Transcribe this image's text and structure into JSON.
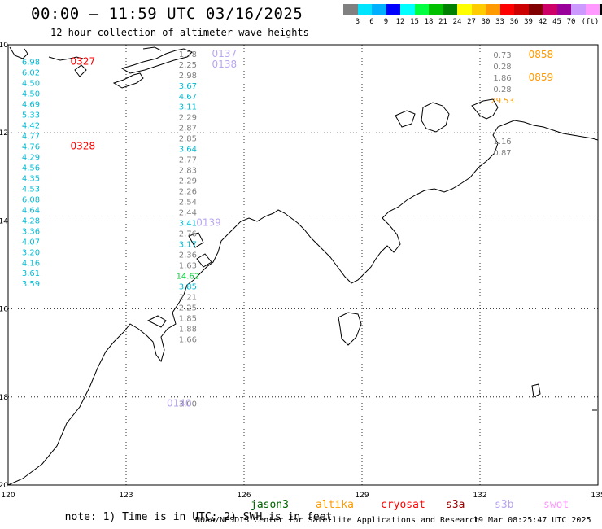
{
  "title": "00:00 – 11:59 UTC 03/16/2025",
  "subtitle": "12 hour collection of altimeter wave heights",
  "colorbar": {
    "colors": [
      "#808080",
      "#00e5ff",
      "#00b0ff",
      "#0000ff",
      "#00ffff",
      "#00ff40",
      "#00c000",
      "#008000",
      "#ffff00",
      "#ffcc00",
      "#ff9900",
      "#ff0000",
      "#cc0000",
      "#800000",
      "#cc0066",
      "#990099",
      "#cc99ff",
      "#ff99ff",
      "#000000"
    ],
    "ticks": [
      "3",
      "6",
      "9",
      "12",
      "15",
      "18",
      "21",
      "24",
      "27",
      "30",
      "33",
      "36",
      "39",
      "42",
      "45",
      "70",
      "(ft)"
    ]
  },
  "axes": {
    "lon_ticks": [
      "120",
      "123",
      "126",
      "129",
      "132",
      "135"
    ],
    "lat_ticks": [
      "-10",
      "-12",
      "-14",
      "-16",
      "-18",
      "-20"
    ]
  },
  "swh": {
    "track1": {
      "color": "#00bcd4",
      "labels": [
        {
          "lat": -10.38,
          "lon": 120.58,
          "text": "6.98"
        },
        {
          "lat": -10.62,
          "lon": 120.58,
          "text": "6.02"
        },
        {
          "lat": -10.86,
          "lon": 120.58,
          "text": "4.50"
        },
        {
          "lat": -11.1,
          "lon": 120.58,
          "text": "4.50"
        },
        {
          "lat": -11.34,
          "lon": 120.58,
          "text": "4.69"
        },
        {
          "lat": -11.58,
          "lon": 120.58,
          "text": "5.33"
        },
        {
          "lat": -11.82,
          "lon": 120.58,
          "text": "4.42"
        },
        {
          "lat": -12.06,
          "lon": 120.58,
          "text": "4.77"
        },
        {
          "lat": -12.3,
          "lon": 120.58,
          "text": "4.76"
        },
        {
          "lat": -12.54,
          "lon": 120.58,
          "text": "4.29"
        },
        {
          "lat": -12.78,
          "lon": 120.58,
          "text": "4.56"
        },
        {
          "lat": -13.02,
          "lon": 120.58,
          "text": "4.35"
        },
        {
          "lat": -13.26,
          "lon": 120.58,
          "text": "4.53"
        },
        {
          "lat": -13.5,
          "lon": 120.58,
          "text": "6.08"
        },
        {
          "lat": -13.74,
          "lon": 120.58,
          "text": "4.64"
        },
        {
          "lat": -13.98,
          "lon": 120.58,
          "text": "4.28"
        },
        {
          "lat": -14.22,
          "lon": 120.58,
          "text": "3.36"
        },
        {
          "lat": -14.46,
          "lon": 120.58,
          "text": "4.07"
        },
        {
          "lat": -14.7,
          "lon": 120.58,
          "text": "3.20"
        },
        {
          "lat": -14.94,
          "lon": 120.58,
          "text": "4.16"
        },
        {
          "lat": -15.18,
          "lon": 120.58,
          "text": "3.61"
        },
        {
          "lat": -15.42,
          "lon": 120.58,
          "text": "3.59"
        }
      ]
    },
    "track2": {
      "labels": [
        {
          "lat": -10.2,
          "lon": 124.57,
          "text": "1.78",
          "color": "#808080"
        },
        {
          "lat": -10.44,
          "lon": 124.57,
          "text": "2.25",
          "color": "#808080"
        },
        {
          "lat": -10.68,
          "lon": 124.57,
          "text": "2.98",
          "color": "#808080"
        },
        {
          "lat": -10.92,
          "lon": 124.57,
          "text": "3.67",
          "color": "#00bcd4"
        },
        {
          "lat": -11.16,
          "lon": 124.57,
          "text": "4.67",
          "color": "#00bcd4"
        },
        {
          "lat": -11.4,
          "lon": 124.57,
          "text": "3.11",
          "color": "#00bcd4"
        },
        {
          "lat": -11.64,
          "lon": 124.57,
          "text": "2.29",
          "color": "#808080"
        },
        {
          "lat": -11.88,
          "lon": 124.57,
          "text": "2.87",
          "color": "#808080"
        },
        {
          "lat": -12.12,
          "lon": 124.57,
          "text": "2.85",
          "color": "#808080"
        },
        {
          "lat": -12.36,
          "lon": 124.57,
          "text": "3.64",
          "color": "#00bcd4"
        },
        {
          "lat": -12.6,
          "lon": 124.57,
          "text": "2.77",
          "color": "#808080"
        },
        {
          "lat": -12.84,
          "lon": 124.57,
          "text": "2.83",
          "color": "#808080"
        },
        {
          "lat": -13.08,
          "lon": 124.57,
          "text": "2.29",
          "color": "#808080"
        },
        {
          "lat": -13.32,
          "lon": 124.57,
          "text": "2.26",
          "color": "#808080"
        },
        {
          "lat": -13.56,
          "lon": 124.57,
          "text": "2.54",
          "color": "#808080"
        },
        {
          "lat": -13.8,
          "lon": 124.57,
          "text": "2.44",
          "color": "#808080"
        },
        {
          "lat": -14.04,
          "lon": 124.57,
          "text": "3.41",
          "color": "#00bcd4"
        },
        {
          "lat": -14.28,
          "lon": 124.57,
          "text": "2.76",
          "color": "#808080"
        },
        {
          "lat": -14.52,
          "lon": 124.57,
          "text": "3.17",
          "color": "#00bcd4"
        },
        {
          "lat": -14.76,
          "lon": 124.57,
          "text": "2.36",
          "color": "#808080"
        },
        {
          "lat": -15.0,
          "lon": 124.57,
          "text": "1.63",
          "color": "#808080"
        },
        {
          "lat": -15.24,
          "lon": 124.57,
          "text": "14.62",
          "color": "#00cc33"
        },
        {
          "lat": -15.48,
          "lon": 124.57,
          "text": "3.85",
          "color": "#00bcd4"
        },
        {
          "lat": -15.72,
          "lon": 124.57,
          "text": "2.21",
          "color": "#808080"
        },
        {
          "lat": -15.96,
          "lon": 124.57,
          "text": "2.25",
          "color": "#808080"
        },
        {
          "lat": -16.2,
          "lon": 124.57,
          "text": "1.85",
          "color": "#808080"
        },
        {
          "lat": -16.44,
          "lon": 124.57,
          "text": "1.88",
          "color": "#808080"
        },
        {
          "lat": -16.68,
          "lon": 124.57,
          "text": "1.66",
          "color": "#808080"
        },
        {
          "lat": -18.14,
          "lon": 124.57,
          "text": "3.00",
          "color": "#808080"
        }
      ]
    },
    "track3": {
      "labels": [
        {
          "lat": -10.22,
          "lon": 132.57,
          "text": "0.73",
          "color": "#808080"
        },
        {
          "lat": -10.48,
          "lon": 132.57,
          "text": "0.28",
          "color": "#808080"
        },
        {
          "lat": -10.74,
          "lon": 132.57,
          "text": "1.86",
          "color": "#808080"
        },
        {
          "lat": -11.0,
          "lon": 132.57,
          "text": "0.28",
          "color": "#808080"
        },
        {
          "lat": -11.26,
          "lon": 132.57,
          "text": "29.53",
          "color": "#ff9900"
        },
        {
          "lat": -12.18,
          "lon": 132.57,
          "text": "1.16",
          "color": "#808080"
        },
        {
          "lat": -12.44,
          "lon": 132.57,
          "text": "0.87",
          "color": "#808080"
        }
      ]
    }
  },
  "time_labels": [
    {
      "text": "0327",
      "color": "#ff0000",
      "lat": -10.38,
      "lon": 121.9
    },
    {
      "text": "0328",
      "color": "#ff0000",
      "lat": -12.3,
      "lon": 121.9
    },
    {
      "text": "0137",
      "color": "#b9a6f0",
      "lat": -10.2,
      "lon": 125.5
    },
    {
      "text": "0138",
      "color": "#b9a6f0",
      "lat": -10.44,
      "lon": 125.5
    },
    {
      "text": "0139",
      "color": "#b9a6f0",
      "lat": -14.04,
      "lon": 125.1
    },
    {
      "text": "0140",
      "color": "#b9a6f0",
      "lat": -18.14,
      "lon": 124.35
    },
    {
      "text": "0858",
      "color": "#ff9900",
      "lat": -10.22,
      "lon": 133.55
    },
    {
      "text": "0859",
      "color": "#ff9900",
      "lat": -10.74,
      "lon": 133.55
    }
  ],
  "note": {
    "text": "note: 1) Time is in UTC; 2) SWH is in feet",
    "missions": [
      {
        "name": "jason3",
        "color": "#006400"
      },
      {
        "name": "altika",
        "color": "#ff9900"
      },
      {
        "name": "cryosat",
        "color": "#ff0000"
      },
      {
        "name": "s3a",
        "color": "#990000"
      },
      {
        "name": "s3b",
        "color": "#b9a6f0"
      },
      {
        "name": "swot",
        "color": "#ff99ff"
      }
    ]
  },
  "credit": {
    "agency": "NOAA/NESDIS Center for Satellite Applications and Research",
    "timestamp": "19 Mar 08:25:47 UTC 2025"
  }
}
